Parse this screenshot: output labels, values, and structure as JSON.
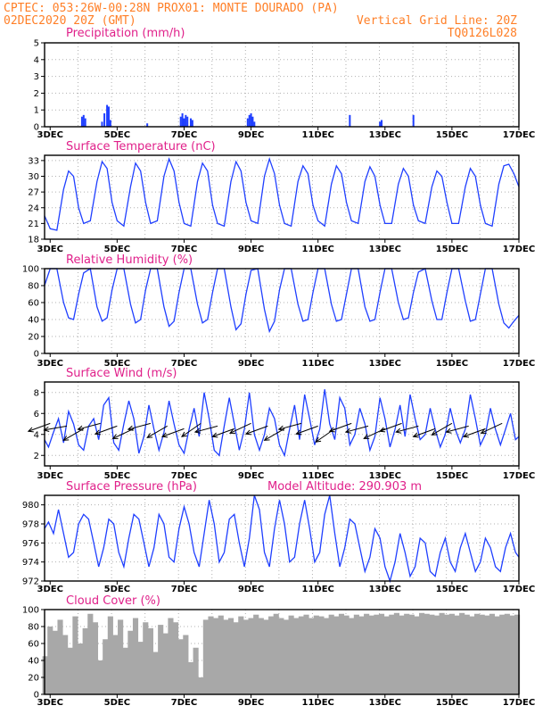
{
  "header": {
    "line1_left": "CPTEC:   053:26W-00:28N  PROX01: MONTE DOURADO (PA)",
    "line2_left": "02DEC2020 20Z (GMT)",
    "line2_right": "Vertical Grid Line: 20Z",
    "line3_right": "TQ0126L028"
  },
  "colors": {
    "series": "#1f3fff",
    "cloud": "#a8a8a8",
    "title": "#e0208a",
    "header": "#ff7f27",
    "grid": "#b0b0b0"
  },
  "x_axis": {
    "start_day": 2.8333,
    "end_day": 17.0,
    "ticks": [
      {
        "day": 3,
        "label": "3DEC"
      },
      {
        "day": 5,
        "label": "5DEC"
      },
      {
        "day": 7,
        "label": "7DEC"
      },
      {
        "day": 9,
        "label": "9DEC"
      },
      {
        "day": 11,
        "label": "11DEC"
      },
      {
        "day": 13,
        "label": "13DEC"
      },
      {
        "day": 15,
        "label": "15DEC"
      },
      {
        "day": 17,
        "label": "17DEC"
      }
    ]
  },
  "chart_data": [
    {
      "type": "bar",
      "title": "Precipitation (mm/h)",
      "ylim": [
        0,
        5
      ],
      "yticks": [
        0,
        1,
        2,
        3,
        4,
        5
      ],
      "x": [
        3.95,
        4.0,
        4.05,
        4.55,
        4.62,
        4.7,
        4.75,
        4.8,
        5.9,
        6.9,
        6.95,
        7.0,
        7.05,
        7.1,
        7.2,
        7.25,
        8.9,
        8.95,
        9.0,
        9.05,
        9.1,
        11.95,
        12.85,
        12.9,
        13.85
      ],
      "values": [
        0.6,
        0.7,
        0.5,
        0.3,
        0.8,
        1.3,
        1.2,
        0.4,
        0.2,
        0.6,
        0.8,
        0.5,
        0.7,
        0.6,
        0.5,
        0.4,
        0.5,
        0.7,
        0.8,
        0.6,
        0.3,
        0.7,
        0.3,
        0.4,
        0.7
      ]
    },
    {
      "type": "line",
      "title": "Surface Temperature (nC)",
      "ylim": [
        18,
        34
      ],
      "yticks": [
        18,
        21,
        24,
        27,
        30,
        33
      ],
      "x": [
        2.83,
        3.0,
        3.2,
        3.4,
        3.55,
        3.7,
        3.85,
        4.0,
        4.2,
        4.4,
        4.55,
        4.7,
        4.85,
        5.0,
        5.2,
        5.4,
        5.55,
        5.7,
        5.85,
        6.0,
        6.2,
        6.4,
        6.55,
        6.7,
        6.85,
        7.0,
        7.2,
        7.4,
        7.55,
        7.7,
        7.85,
        8.0,
        8.2,
        8.4,
        8.55,
        8.7,
        8.85,
        9.0,
        9.2,
        9.4,
        9.55,
        9.7,
        9.85,
        10.0,
        10.2,
        10.4,
        10.55,
        10.7,
        10.85,
        11.0,
        11.2,
        11.4,
        11.55,
        11.7,
        11.85,
        12.0,
        12.2,
        12.4,
        12.55,
        12.7,
        12.85,
        13.0,
        13.2,
        13.4,
        13.55,
        13.7,
        13.85,
        14.0,
        14.2,
        14.4,
        14.55,
        14.7,
        14.85,
        15.0,
        15.2,
        15.4,
        15.55,
        15.7,
        15.85,
        16.0,
        16.2,
        16.4,
        16.55,
        16.7,
        16.85,
        17.0
      ],
      "values": [
        22.5,
        20.0,
        19.7,
        27.5,
        31.0,
        30.0,
        24.0,
        21.0,
        21.5,
        29.0,
        32.8,
        31.5,
        25.0,
        21.5,
        20.5,
        28.0,
        32.5,
        31.0,
        25.0,
        21.0,
        21.5,
        30.0,
        33.3,
        31.0,
        25.0,
        21.0,
        20.5,
        29.0,
        32.5,
        31.0,
        24.5,
        21.0,
        20.5,
        29.0,
        32.8,
        31.0,
        25.0,
        21.5,
        21.0,
        30.0,
        33.3,
        30.5,
        24.5,
        21.0,
        20.5,
        29.0,
        32.0,
        30.5,
        24.5,
        21.5,
        20.5,
        28.5,
        32.0,
        30.5,
        25.0,
        21.5,
        21.0,
        29.0,
        31.8,
        30.0,
        24.5,
        21.0,
        21.0,
        28.5,
        31.5,
        30.0,
        24.5,
        21.5,
        21.0,
        28.0,
        31.0,
        30.0,
        25.0,
        21.0,
        21.0,
        28.0,
        31.5,
        30.0,
        24.5,
        21.0,
        20.5,
        28.5,
        32.0,
        32.3,
        30.5,
        28.0
      ]
    },
    {
      "type": "line",
      "title": "Relative Humidity (%)",
      "ylim": [
        0,
        100
      ],
      "yticks": [
        0,
        20,
        40,
        60,
        80,
        100
      ],
      "x": [
        2.83,
        3.0,
        3.2,
        3.4,
        3.55,
        3.7,
        3.85,
        4.0,
        4.2,
        4.4,
        4.55,
        4.7,
        4.85,
        5.0,
        5.2,
        5.4,
        5.55,
        5.7,
        5.85,
        6.0,
        6.2,
        6.4,
        6.55,
        6.7,
        6.85,
        7.0,
        7.2,
        7.4,
        7.55,
        7.7,
        7.85,
        8.0,
        8.2,
        8.4,
        8.55,
        8.7,
        8.85,
        9.0,
        9.2,
        9.4,
        9.55,
        9.7,
        9.85,
        10.0,
        10.2,
        10.4,
        10.55,
        10.7,
        10.85,
        11.0,
        11.2,
        11.4,
        11.55,
        11.7,
        11.85,
        12.0,
        12.2,
        12.4,
        12.55,
        12.7,
        12.85,
        13.0,
        13.2,
        13.4,
        13.55,
        13.7,
        13.85,
        14.0,
        14.2,
        14.4,
        14.55,
        14.7,
        14.85,
        15.0,
        15.2,
        15.4,
        15.55,
        15.7,
        15.85,
        16.0,
        16.2,
        16.4,
        16.55,
        16.7,
        16.85,
        17.0
      ],
      "values": [
        80,
        100,
        100,
        60,
        42,
        40,
        70,
        95,
        100,
        55,
        38,
        42,
        75,
        100,
        100,
        58,
        36,
        40,
        75,
        100,
        100,
        55,
        32,
        38,
        72,
        100,
        100,
        58,
        36,
        40,
        72,
        100,
        100,
        55,
        28,
        35,
        70,
        98,
        100,
        52,
        26,
        38,
        75,
        100,
        100,
        58,
        38,
        40,
        72,
        100,
        100,
        58,
        38,
        40,
        70,
        100,
        100,
        55,
        38,
        40,
        72,
        100,
        100,
        60,
        40,
        42,
        72,
        96,
        100,
        62,
        40,
        40,
        72,
        100,
        100,
        62,
        38,
        40,
        70,
        100,
        100,
        58,
        36,
        30,
        38,
        45
      ]
    },
    {
      "type": "line",
      "title": "Surface Wind (m/s)",
      "ylim": [
        1,
        9
      ],
      "yticks": [
        2,
        4,
        6,
        8
      ],
      "x": [
        2.83,
        2.95,
        3.1,
        3.25,
        3.4,
        3.55,
        3.7,
        3.85,
        4.0,
        4.15,
        4.3,
        4.45,
        4.6,
        4.75,
        4.9,
        5.05,
        5.2,
        5.35,
        5.5,
        5.65,
        5.8,
        5.95,
        6.1,
        6.25,
        6.4,
        6.55,
        6.7,
        6.85,
        7.0,
        7.15,
        7.3,
        7.45,
        7.6,
        7.75,
        7.9,
        8.05,
        8.2,
        8.35,
        8.5,
        8.65,
        8.8,
        8.95,
        9.1,
        9.25,
        9.4,
        9.55,
        9.7,
        9.85,
        10.0,
        10.15,
        10.3,
        10.45,
        10.6,
        10.75,
        10.9,
        11.05,
        11.2,
        11.35,
        11.5,
        11.65,
        11.8,
        11.95,
        12.1,
        12.25,
        12.4,
        12.55,
        12.7,
        12.85,
        13.0,
        13.15,
        13.3,
        13.45,
        13.6,
        13.75,
        13.9,
        14.05,
        14.2,
        14.35,
        14.5,
        14.65,
        14.8,
        14.95,
        15.1,
        15.25,
        15.4,
        15.55,
        15.7,
        15.85,
        16.0,
        16.15,
        16.3,
        16.45,
        16.6,
        16.75,
        16.9,
        17.0
      ],
      "values": [
        3.5,
        2.8,
        4.2,
        5.5,
        3.2,
        6.2,
        5.0,
        3.0,
        2.5,
        4.8,
        5.5,
        3.5,
        6.8,
        7.5,
        3.2,
        2.5,
        5.0,
        7.2,
        5.5,
        2.2,
        3.8,
        6.8,
        4.5,
        2.5,
        4.2,
        7.2,
        5.0,
        3.0,
        2.2,
        4.5,
        6.5,
        3.8,
        8.0,
        5.5,
        2.5,
        2.0,
        4.8,
        7.5,
        5.0,
        2.5,
        4.5,
        8.0,
        4.0,
        2.5,
        4.0,
        6.5,
        5.5,
        3.0,
        2.0,
        4.5,
        6.8,
        3.5,
        7.8,
        5.5,
        3.0,
        4.5,
        8.3,
        5.0,
        3.5,
        7.5,
        6.5,
        3.0,
        4.0,
        6.5,
        5.0,
        2.5,
        3.8,
        7.5,
        5.5,
        2.8,
        4.5,
        6.8,
        3.8,
        7.8,
        5.5,
        3.5,
        4.0,
        6.5,
        4.5,
        2.8,
        4.0,
        6.5,
        4.5,
        3.2,
        4.5,
        7.8,
        5.5,
        3.0,
        4.0,
        6.5,
        4.5,
        3.0,
        4.5,
        6.0,
        3.5,
        3.8
      ]
    },
    {
      "type": "line",
      "title": "Surface Pressure (hPa)",
      "subtitle": "Model Altitude: 290.903 m",
      "ylim": [
        972,
        981
      ],
      "yticks": [
        972,
        974,
        976,
        978,
        980
      ],
      "x": [
        2.83,
        2.95,
        3.1,
        3.25,
        3.4,
        3.55,
        3.7,
        3.85,
        4.0,
        4.15,
        4.3,
        4.45,
        4.6,
        4.75,
        4.9,
        5.05,
        5.2,
        5.35,
        5.5,
        5.65,
        5.8,
        5.95,
        6.1,
        6.25,
        6.4,
        6.55,
        6.7,
        6.85,
        7.0,
        7.15,
        7.3,
        7.45,
        7.6,
        7.75,
        7.9,
        8.05,
        8.2,
        8.35,
        8.5,
        8.65,
        8.8,
        8.95,
        9.1,
        9.25,
        9.4,
        9.55,
        9.7,
        9.85,
        10.0,
        10.15,
        10.3,
        10.45,
        10.6,
        10.75,
        10.9,
        11.05,
        11.2,
        11.35,
        11.5,
        11.65,
        11.8,
        11.95,
        12.1,
        12.25,
        12.4,
        12.55,
        12.7,
        12.85,
        13.0,
        13.15,
        13.3,
        13.45,
        13.6,
        13.75,
        13.9,
        14.05,
        14.2,
        14.35,
        14.5,
        14.65,
        14.8,
        14.95,
        15.1,
        15.25,
        15.4,
        15.55,
        15.7,
        15.85,
        16.0,
        16.15,
        16.3,
        16.45,
        16.6,
        16.75,
        16.9,
        17.0
      ],
      "values": [
        977.5,
        978.2,
        977.0,
        979.5,
        977.0,
        974.5,
        975.0,
        978.0,
        979.0,
        978.5,
        976.0,
        973.5,
        975.5,
        978.5,
        978.0,
        975.0,
        973.5,
        976.5,
        979.0,
        978.5,
        976.0,
        973.5,
        975.5,
        979.0,
        978.0,
        974.5,
        974.0,
        977.5,
        979.8,
        978.0,
        975.0,
        973.5,
        977.0,
        980.5,
        978.0,
        974.0,
        975.0,
        978.5,
        979.0,
        976.0,
        973.5,
        976.5,
        981.5,
        979.5,
        975.0,
        973.5,
        977.5,
        980.5,
        978.0,
        974.0,
        974.5,
        978.0,
        980.5,
        977.5,
        974.0,
        975.0,
        979.0,
        981.2,
        977.0,
        973.5,
        975.5,
        978.5,
        978.0,
        975.5,
        973.0,
        974.5,
        977.5,
        976.5,
        973.5,
        972.0,
        974.0,
        977.0,
        975.0,
        972.5,
        973.5,
        976.5,
        976.0,
        973.0,
        972.5,
        975.0,
        976.5,
        974.0,
        973.0,
        975.5,
        977.0,
        975.0,
        973.0,
        974.0,
        976.5,
        975.5,
        973.5,
        973.0,
        975.5,
        977.0,
        975.0,
        974.5
      ]
    },
    {
      "type": "bar",
      "title": "Cloud Cover (%)",
      "ylim": [
        0,
        100
      ],
      "yticks": [
        0,
        20,
        40,
        60,
        80,
        100
      ],
      "x": [
        2.85,
        3.0,
        3.15,
        3.3,
        3.45,
        3.6,
        3.75,
        3.9,
        4.05,
        4.2,
        4.35,
        4.5,
        4.65,
        4.8,
        4.95,
        5.1,
        5.25,
        5.4,
        5.55,
        5.7,
        5.85,
        6.0,
        6.15,
        6.3,
        6.45,
        6.6,
        6.75,
        6.9,
        7.05,
        7.2,
        7.35,
        7.5,
        7.65,
        7.8,
        7.95,
        8.1,
        8.25,
        8.4,
        8.55,
        8.7,
        8.85,
        9.0,
        9.15,
        9.3,
        9.45,
        9.6,
        9.75,
        9.9,
        10.05,
        10.2,
        10.35,
        10.5,
        10.65,
        10.8,
        10.95,
        11.1,
        11.25,
        11.4,
        11.55,
        11.7,
        11.85,
        12.0,
        12.15,
        12.3,
        12.45,
        12.6,
        12.75,
        12.9,
        13.05,
        13.2,
        13.35,
        13.5,
        13.65,
        13.8,
        13.95,
        14.1,
        14.25,
        14.4,
        14.55,
        14.7,
        14.85,
        15.0,
        15.15,
        15.3,
        15.45,
        15.6,
        15.75,
        15.9,
        16.05,
        16.2,
        16.35,
        16.5,
        16.65,
        16.8,
        16.95
      ],
      "values": [
        45,
        80,
        75,
        88,
        70,
        55,
        92,
        60,
        78,
        95,
        85,
        40,
        65,
        92,
        70,
        88,
        55,
        75,
        90,
        62,
        85,
        78,
        50,
        82,
        72,
        90,
        85,
        65,
        70,
        38,
        55,
        20,
        88,
        92,
        90,
        93,
        88,
        90,
        85,
        92,
        88,
        90,
        94,
        90,
        88,
        92,
        95,
        90,
        88,
        93,
        90,
        92,
        94,
        90,
        93,
        92,
        90,
        94,
        92,
        95,
        93,
        90,
        94,
        92,
        95,
        93,
        94,
        95,
        92,
        94,
        96,
        93,
        95,
        94,
        92,
        96,
        95,
        94,
        93,
        96,
        94,
        95,
        93,
        96,
        94,
        92,
        95,
        94,
        93,
        95,
        92,
        94,
        95,
        93,
        94
      ]
    }
  ],
  "wind_vectors": {
    "direction_text": "arrows point toward the west-southwest (easterly trade winds)",
    "x": [
      3.0,
      3.5,
      4.0,
      4.5,
      5.0,
      5.5,
      6.0,
      6.5,
      7.0,
      7.5,
      8.0,
      8.5,
      9.0,
      9.5,
      10.0,
      10.5,
      11.0,
      11.5,
      12.0,
      12.5,
      13.0,
      13.5,
      14.0,
      14.5,
      15.0,
      15.5,
      16.0,
      16.5
    ],
    "angle_deg": [
      200,
      190,
      210,
      195,
      200,
      205,
      195,
      210,
      200,
      215,
      195,
      200,
      205,
      200,
      210,
      195,
      200,
      215,
      200,
      195,
      205,
      200,
      195,
      200,
      210,
      195,
      200,
      205
    ]
  }
}
